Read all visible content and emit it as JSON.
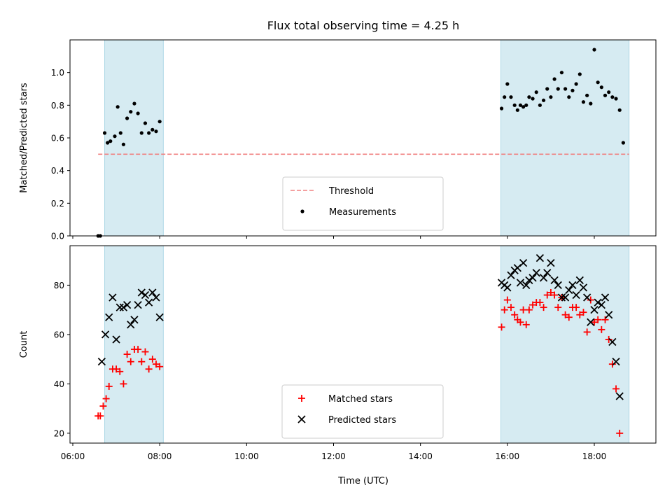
{
  "chart_data": {
    "title": "Flux total observing time = 4.25 h",
    "xlabel": "Time (UTC)",
    "x_ticks": [
      "06:00",
      "08:00",
      "10:00",
      "12:00",
      "14:00",
      "16:00",
      "18:00"
    ],
    "xlim": [
      "06:00",
      "19:30"
    ],
    "shaded_intervals": [
      [
        "06:44",
        "08:05"
      ],
      [
        "15:51",
        "18:48"
      ]
    ],
    "colors": {
      "shade": "#add8e6",
      "threshold": "#f08080",
      "matched": "#ff0000",
      "predicted": "#000000",
      "measurements": "#000000"
    },
    "panels": [
      {
        "type": "scatter",
        "ylabel": "Matched/Predicted stars",
        "ylim": [
          0,
          1.2
        ],
        "y_ticks": [
          "0.0",
          "0.2",
          "0.4",
          "0.6",
          "0.8",
          "1.0"
        ],
        "legend_position": "lower-center",
        "threshold": {
          "name": "Threshold",
          "value": 0.5,
          "x_range": [
            "06:35",
            "18:48"
          ]
        },
        "series": [
          {
            "name": "Measurements",
            "marker": "dot",
            "points": [
              [
                "06:35",
                0.0
              ],
              [
                "06:38",
                0.0
              ],
              [
                "06:44",
                0.63
              ],
              [
                "06:48",
                0.57
              ],
              [
                "06:52",
                0.58
              ],
              [
                "06:58",
                0.61
              ],
              [
                "07:02",
                0.79
              ],
              [
                "07:06",
                0.63
              ],
              [
                "07:10",
                0.56
              ],
              [
                "07:15",
                0.72
              ],
              [
                "07:20",
                0.76
              ],
              [
                "07:25",
                0.81
              ],
              [
                "07:30",
                0.75
              ],
              [
                "07:35",
                0.63
              ],
              [
                "07:40",
                0.69
              ],
              [
                "07:45",
                0.63
              ],
              [
                "07:50",
                0.65
              ],
              [
                "07:55",
                0.64
              ],
              [
                "08:00",
                0.7
              ],
              [
                "15:52",
                0.78
              ],
              [
                "15:56",
                0.85
              ],
              [
                "16:00",
                0.93
              ],
              [
                "16:05",
                0.85
              ],
              [
                "16:10",
                0.8
              ],
              [
                "16:14",
                0.77
              ],
              [
                "16:18",
                0.8
              ],
              [
                "16:22",
                0.79
              ],
              [
                "16:26",
                0.8
              ],
              [
                "16:30",
                0.85
              ],
              [
                "16:35",
                0.84
              ],
              [
                "16:40",
                0.88
              ],
              [
                "16:45",
                0.8
              ],
              [
                "16:50",
                0.83
              ],
              [
                "16:55",
                0.9
              ],
              [
                "17:00",
                0.85
              ],
              [
                "17:05",
                0.96
              ],
              [
                "17:10",
                0.9
              ],
              [
                "17:15",
                1.0
              ],
              [
                "17:20",
                0.9
              ],
              [
                "17:25",
                0.85
              ],
              [
                "17:30",
                0.89
              ],
              [
                "17:35",
                0.93
              ],
              [
                "17:40",
                0.99
              ],
              [
                "17:45",
                0.82
              ],
              [
                "17:50",
                0.86
              ],
              [
                "17:55",
                0.81
              ],
              [
                "18:00",
                1.14
              ],
              [
                "18:05",
                0.94
              ],
              [
                "18:10",
                0.91
              ],
              [
                "18:15",
                0.86
              ],
              [
                "18:20",
                0.88
              ],
              [
                "18:25",
                0.85
              ],
              [
                "18:30",
                0.84
              ],
              [
                "18:35",
                0.77
              ],
              [
                "18:40",
                0.57
              ]
            ]
          }
        ]
      },
      {
        "type": "scatter",
        "ylabel": "Count",
        "ylim": [
          16,
          96
        ],
        "y_ticks": [
          "20",
          "40",
          "60",
          "80"
        ],
        "legend_position": "lower-center",
        "series": [
          {
            "name": "Matched stars",
            "marker": "plus",
            "points": [
              [
                "06:35",
                27
              ],
              [
                "06:38",
                27
              ],
              [
                "06:42",
                31
              ],
              [
                "06:46",
                34
              ],
              [
                "06:50",
                39
              ],
              [
                "06:55",
                46
              ],
              [
                "07:00",
                46
              ],
              [
                "07:05",
                45
              ],
              [
                "07:10",
                40
              ],
              [
                "07:15",
                52
              ],
              [
                "07:20",
                49
              ],
              [
                "07:25",
                54
              ],
              [
                "07:30",
                54
              ],
              [
                "07:35",
                49
              ],
              [
                "07:40",
                53
              ],
              [
                "07:45",
                46
              ],
              [
                "07:50",
                50
              ],
              [
                "07:55",
                48
              ],
              [
                "08:00",
                47
              ],
              [
                "15:52",
                63
              ],
              [
                "15:56",
                70
              ],
              [
                "16:00",
                74
              ],
              [
                "16:05",
                71
              ],
              [
                "16:10",
                68
              ],
              [
                "16:14",
                66
              ],
              [
                "16:18",
                65
              ],
              [
                "16:22",
                70
              ],
              [
                "16:26",
                64
              ],
              [
                "16:30",
                70
              ],
              [
                "16:35",
                72
              ],
              [
                "16:40",
                73
              ],
              [
                "16:45",
                73
              ],
              [
                "16:50",
                71
              ],
              [
                "16:55",
                76
              ],
              [
                "17:00",
                77
              ],
              [
                "17:05",
                76
              ],
              [
                "17:10",
                71
              ],
              [
                "17:15",
                75
              ],
              [
                "17:20",
                68
              ],
              [
                "17:25",
                67
              ],
              [
                "17:30",
                71
              ],
              [
                "17:35",
                71
              ],
              [
                "17:40",
                68
              ],
              [
                "17:45",
                69
              ],
              [
                "17:50",
                61
              ],
              [
                "17:55",
                74
              ],
              [
                "18:00",
                65
              ],
              [
                "18:05",
                66
              ],
              [
                "18:10",
                62
              ],
              [
                "18:15",
                66
              ],
              [
                "18:20",
                58
              ],
              [
                "18:25",
                48
              ],
              [
                "18:30",
                38
              ],
              [
                "18:35",
                20
              ]
            ]
          },
          {
            "name": "Predicted stars",
            "marker": "x",
            "points": [
              [
                "06:40",
                49
              ],
              [
                "06:45",
                60
              ],
              [
                "06:50",
                67
              ],
              [
                "06:55",
                75
              ],
              [
                "07:00",
                58
              ],
              [
                "07:05",
                71
              ],
              [
                "07:10",
                71
              ],
              [
                "07:15",
                72
              ],
              [
                "07:20",
                64
              ],
              [
                "07:25",
                66
              ],
              [
                "07:30",
                72
              ],
              [
                "07:35",
                77
              ],
              [
                "07:40",
                76
              ],
              [
                "07:45",
                73
              ],
              [
                "07:50",
                77
              ],
              [
                "07:55",
                75
              ],
              [
                "08:00",
                67
              ],
              [
                "15:52",
                81
              ],
              [
                "15:56",
                80
              ],
              [
                "16:00",
                79
              ],
              [
                "16:05",
                84
              ],
              [
                "16:10",
                86
              ],
              [
                "16:14",
                87
              ],
              [
                "16:18",
                81
              ],
              [
                "16:22",
                89
              ],
              [
                "16:26",
                80
              ],
              [
                "16:30",
                82
              ],
              [
                "16:35",
                83
              ],
              [
                "16:40",
                85
              ],
              [
                "16:45",
                91
              ],
              [
                "16:50",
                83
              ],
              [
                "16:55",
                85
              ],
              [
                "17:00",
                89
              ],
              [
                "17:05",
                82
              ],
              [
                "17:10",
                80
              ],
              [
                "17:15",
                75
              ],
              [
                "17:20",
                75
              ],
              [
                "17:25",
                78
              ],
              [
                "17:30",
                80
              ],
              [
                "17:35",
                76
              ],
              [
                "17:40",
                82
              ],
              [
                "17:45",
                79
              ],
              [
                "17:50",
                75
              ],
              [
                "17:55",
                65
              ],
              [
                "18:00",
                70
              ],
              [
                "18:05",
                73
              ],
              [
                "18:10",
                72
              ],
              [
                "18:15",
                75
              ],
              [
                "18:20",
                68
              ],
              [
                "18:25",
                57
              ],
              [
                "18:30",
                49
              ],
              [
                "18:35",
                35
              ]
            ]
          }
        ]
      }
    ]
  }
}
